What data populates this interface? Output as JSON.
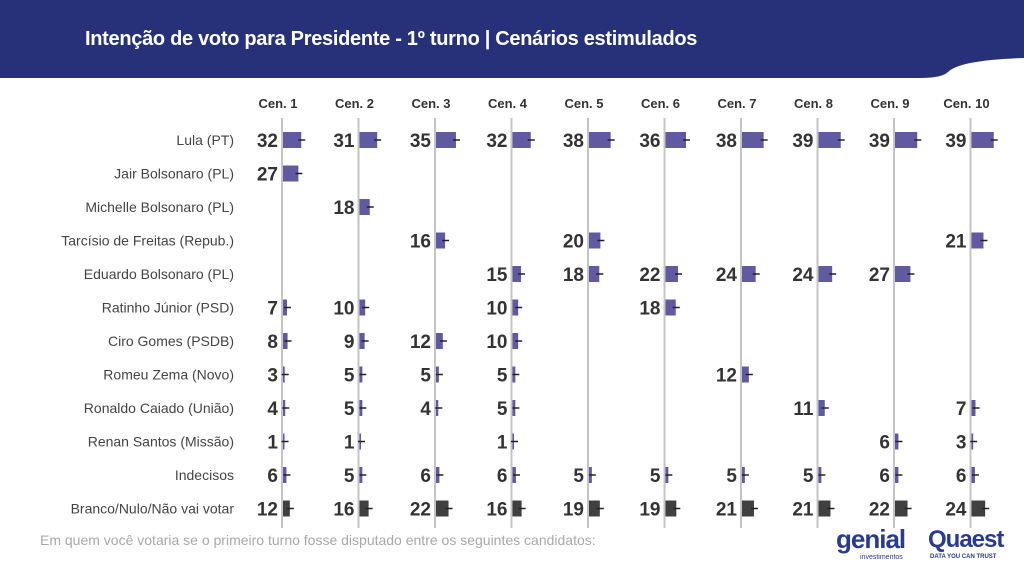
{
  "colors": {
    "header": "#27317a",
    "candidate_bar": "#5f5aa2",
    "blank_bar": "#404040",
    "axis": "#c4c4c4",
    "text": "#333333"
  },
  "header": {
    "title": "Intenção de voto para Presidente - 1º turno | Cenários estimulados"
  },
  "footer": {
    "note": "Em quem você votaria se o primeiro turno fosse disputado entre os seguintes candidatos:",
    "logo_genial": "genial",
    "logo_genial_sub": "investimentos",
    "logo_quaest": "Quaest",
    "logo_quaest_sub": "DATA YOU CAN TRUST"
  },
  "chart_data": {
    "type": "bar",
    "title": "Intenção de voto para Presidente - 1º turno | Cenários estimulados",
    "categories": [
      "Cen. 1",
      "Cen. 2",
      "Cen. 3",
      "Cen. 4",
      "Cen. 5",
      "Cen. 6",
      "Cen. 7",
      "Cen. 8",
      "Cen. 9",
      "Cen. 10"
    ],
    "series": [
      {
        "name": "Lula (PT)",
        "values": [
          32,
          31,
          35,
          32,
          38,
          36,
          38,
          39,
          39,
          39
        ]
      },
      {
        "name": "Jair Bolsonaro (PL)",
        "values": [
          27,
          null,
          null,
          null,
          null,
          null,
          null,
          null,
          null,
          null
        ]
      },
      {
        "name": "Michelle Bolsonaro (PL)",
        "values": [
          null,
          18,
          null,
          null,
          null,
          null,
          null,
          null,
          null,
          null
        ]
      },
      {
        "name": "Tarcísio de Freitas (Repub.)",
        "values": [
          null,
          null,
          16,
          null,
          20,
          null,
          null,
          null,
          null,
          21
        ]
      },
      {
        "name": "Eduardo Bolsonaro (PL)",
        "values": [
          null,
          null,
          null,
          15,
          18,
          22,
          24,
          24,
          27,
          null
        ]
      },
      {
        "name": "Ratinho Júnior (PSD)",
        "values": [
          7,
          10,
          null,
          10,
          null,
          18,
          null,
          null,
          null,
          null
        ]
      },
      {
        "name": "Ciro Gomes (PSDB)",
        "values": [
          8,
          9,
          12,
          10,
          null,
          null,
          null,
          null,
          null,
          null
        ]
      },
      {
        "name": "Romeu Zema (Novo)",
        "values": [
          3,
          5,
          5,
          5,
          null,
          null,
          12,
          null,
          null,
          null
        ]
      },
      {
        "name": "Ronaldo Caiado (União)",
        "values": [
          4,
          5,
          4,
          5,
          null,
          null,
          null,
          11,
          null,
          7
        ]
      },
      {
        "name": "Renan Santos (Missão)",
        "values": [
          1,
          1,
          null,
          1,
          null,
          null,
          null,
          null,
          6,
          3
        ]
      },
      {
        "name": "Indecisos",
        "values": [
          6,
          5,
          6,
          6,
          5,
          5,
          5,
          5,
          6,
          6
        ]
      },
      {
        "name": "Branco/Nulo/Não vai votar",
        "values": [
          12,
          16,
          22,
          16,
          19,
          19,
          21,
          21,
          22,
          24
        ]
      }
    ],
    "unit": "%"
  }
}
